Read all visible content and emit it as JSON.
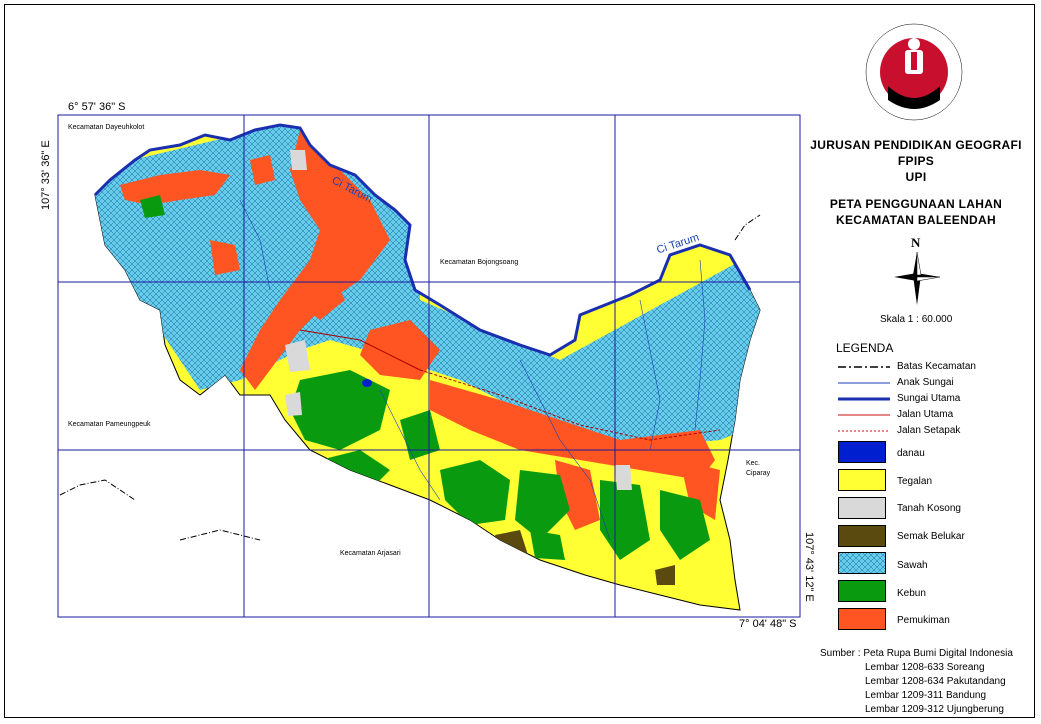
{
  "coordinates": {
    "top_lat": "6° 57' 36\" S",
    "bottom_lat": "7° 04' 48\" S",
    "left_lon": "107° 33' 36\" E",
    "right_lon": "107° 43' 12\" E"
  },
  "kecamatan": {
    "dayeuhkolot": "Kecamatan Dayeuhkolot",
    "bojongsoang": "Kecamatan Bojongsoang",
    "pameungpeuk": "Kecamatan Pameungpeuk",
    "arjasari": "Kecamatan Arjasari",
    "ciparay_1": "Kec.",
    "ciparay_2": "Ciparay"
  },
  "rivers": {
    "label_1": "Ci Tarum",
    "label_2": "Ci Tarum"
  },
  "logo": {
    "text": "UNIVERSITAS PENDIDIKAN INDONESIA",
    "colors": [
      "#c8102e",
      "#000000"
    ]
  },
  "titles": {
    "line1": "JURUSAN PENDIDIKAN GEOGRAFI",
    "line2": "FPIPS",
    "line3": "UPI",
    "line4": "PETA PENGGUNAAN LAHAN",
    "line5": "KECAMATAN BALEENDAH"
  },
  "north": "N",
  "scale": "Skala 1 : 60.000",
  "legend": {
    "heading": "LEGENDA",
    "lines": [
      {
        "label": "Batas Kecamatan"
      },
      {
        "label": "Anak Sungai"
      },
      {
        "label": "Sungai Utama"
      },
      {
        "label": "Jalan Utama"
      },
      {
        "label": "Jalan Setapak"
      }
    ],
    "areas": [
      {
        "label": "danau",
        "color": "#0020d0"
      },
      {
        "label": "Tegalan",
        "color": "#ffff33"
      },
      {
        "label": "Tanah Kosong",
        "color": "#d9d9d9"
      },
      {
        "label": "Semak Belukar",
        "color": "#5a4a10"
      },
      {
        "label": "Sawah",
        "color": "#66ccee"
      },
      {
        "label": "Kebun",
        "color": "#0a9a10"
      },
      {
        "label": "Pemukiman",
        "color": "#ff5522"
      }
    ]
  },
  "source": {
    "label": "Sumber : Peta Rupa Bumi Digital Indonesia",
    "sheets": [
      "Lembar 1208-633 Soreang",
      "Lembar 1208-634 Pakutandang",
      "Lembar 1209-311 Bandung",
      "Lembar 1209-312 Ujungberung"
    ]
  }
}
